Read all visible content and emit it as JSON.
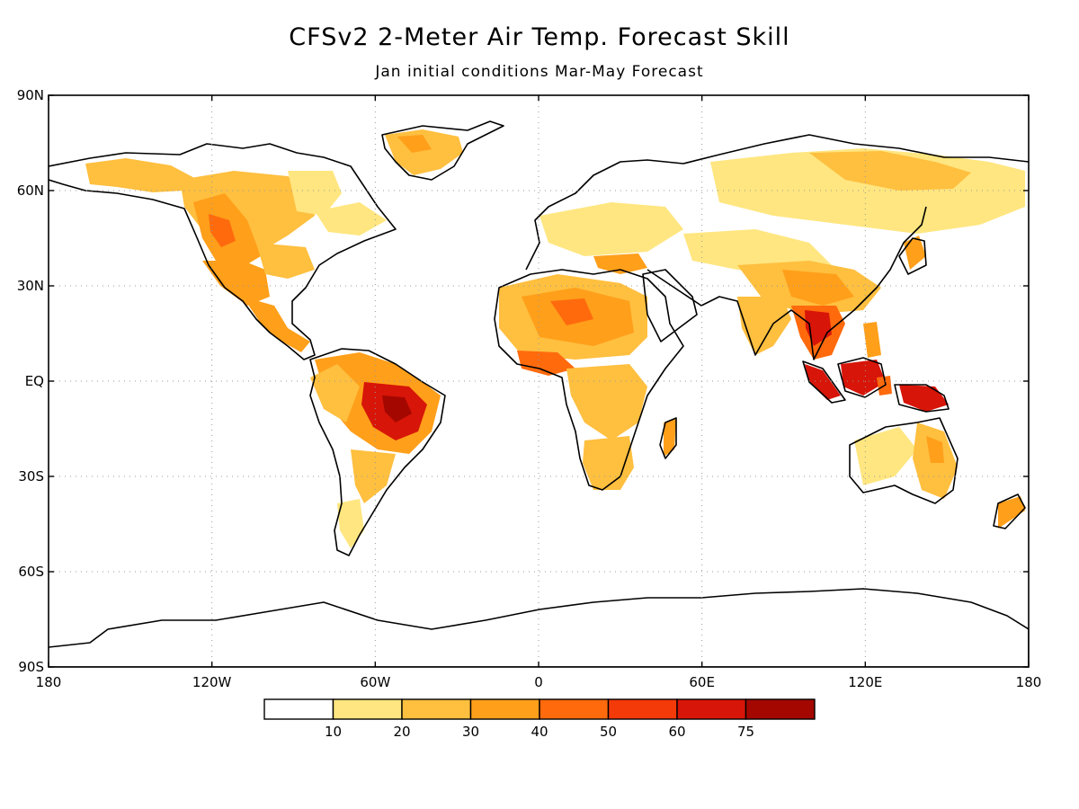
{
  "title": "CFSv2 2-Meter Air Temp. Forecast Skill",
  "subtitle": "Jan initial conditions   Mar-May Forecast",
  "map": {
    "lat_labels": [
      "90N",
      "60N",
      "30N",
      "EQ",
      "30S",
      "60S",
      "90S"
    ],
    "lat_values": [
      90,
      60,
      30,
      0,
      -30,
      -60,
      -90
    ],
    "lon_labels": [
      "180",
      "120W",
      "60W",
      "0",
      "60E",
      "120E",
      "180"
    ],
    "lon_values": [
      -180,
      -120,
      -60,
      0,
      60,
      120,
      180
    ],
    "grid": "dotted",
    "land_outline_color": "#000000"
  },
  "colorbar": {
    "bins": [
      {
        "color": "#ffffff"
      },
      {
        "color": "#ffe680"
      },
      {
        "color": "#ffbf3f"
      },
      {
        "color": "#ff9f1a"
      },
      {
        "color": "#ff6a0d"
      },
      {
        "color": "#f53a0a"
      },
      {
        "color": "#d71508"
      },
      {
        "color": "#a30700"
      }
    ],
    "tick_labels": [
      "10",
      "20",
      "30",
      "40",
      "50",
      "60",
      "75"
    ]
  },
  "skill_regions": [
    {
      "name": "Brazil",
      "level": 75
    },
    {
      "name": "Indochina",
      "level": 60
    },
    {
      "name": "Borneo",
      "level": 60
    },
    {
      "name": "New Guinea",
      "level": 60
    },
    {
      "name": "Western North America",
      "level": 40
    },
    {
      "name": "Sahara",
      "level": 40
    },
    {
      "name": "Siberia",
      "level": 20
    }
  ]
}
